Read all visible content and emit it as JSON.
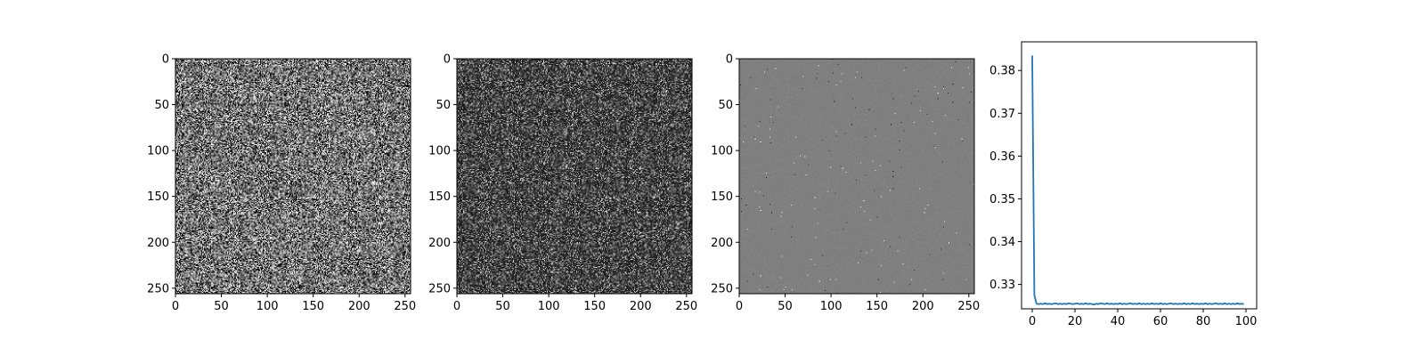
{
  "chart_data": [
    {
      "type": "heatmap",
      "colormap": "gray",
      "texture": "uniform-noise",
      "mean_level": 0.45,
      "contrast": 0.55,
      "xlim": [
        0,
        256
      ],
      "ylim": [
        256,
        0
      ],
      "x_ticks": [
        0,
        50,
        100,
        150,
        200,
        250
      ],
      "y_ticks": [
        0,
        50,
        100,
        150,
        200,
        250
      ],
      "x_tick_labels": [
        "0",
        "50",
        "100",
        "150",
        "200",
        "250"
      ],
      "y_tick_labels": [
        "0",
        "50",
        "100",
        "150",
        "200",
        "250"
      ]
    },
    {
      "type": "heatmap",
      "colormap": "gray",
      "texture": "sparse-noise",
      "mean_level": 0.1,
      "contrast": 0.35,
      "xlim": [
        0,
        256
      ],
      "ylim": [
        256,
        0
      ],
      "x_ticks": [
        0,
        50,
        100,
        150,
        200,
        250
      ],
      "y_ticks": [
        0,
        50,
        100,
        150,
        200,
        250
      ],
      "x_tick_labels": [
        "0",
        "50",
        "100",
        "150",
        "200",
        "250"
      ],
      "y_tick_labels": [
        "0",
        "50",
        "100",
        "150",
        "200",
        "250"
      ]
    },
    {
      "type": "heatmap",
      "colormap": "gray",
      "texture": "near-uniform",
      "mean_level": 0.5,
      "contrast": 0.04,
      "xlim": [
        0,
        256
      ],
      "ylim": [
        256,
        0
      ],
      "x_ticks": [
        0,
        50,
        100,
        150,
        200,
        250
      ],
      "y_ticks": [
        0,
        50,
        100,
        150,
        200,
        250
      ],
      "x_tick_labels": [
        "0",
        "50",
        "100",
        "150",
        "200",
        "250"
      ],
      "y_tick_labels": [
        "0",
        "50",
        "100",
        "150",
        "200",
        "250"
      ]
    },
    {
      "type": "line",
      "line_color": "#1f77b4",
      "xlim": [
        -5,
        105
      ],
      "ylim": [
        0.3243,
        0.3867
      ],
      "x_ticks": [
        0,
        20,
        40,
        60,
        80,
        100
      ],
      "y_ticks": [
        0.33,
        0.34,
        0.35,
        0.36,
        0.37,
        0.38
      ],
      "x_tick_labels": [
        "0",
        "20",
        "40",
        "60",
        "80",
        "100"
      ],
      "y_tick_labels": [
        "0.33",
        "0.34",
        "0.35",
        "0.36",
        "0.37",
        "0.38"
      ],
      "series": [
        {
          "x": [
            0,
            1,
            2,
            3,
            4,
            5,
            6,
            7,
            8,
            9,
            10,
            11,
            12,
            13,
            14,
            15,
            16,
            17,
            18,
            19,
            20,
            21,
            22,
            23,
            24,
            25,
            26,
            27,
            28,
            29,
            30,
            31,
            32,
            33,
            34,
            35,
            36,
            37,
            38,
            39,
            40,
            41,
            42,
            43,
            44,
            45,
            46,
            47,
            48,
            49,
            50,
            51,
            52,
            53,
            54,
            55,
            56,
            57,
            58,
            59,
            60,
            61,
            62,
            63,
            64,
            65,
            66,
            67,
            68,
            69,
            70,
            71,
            72,
            73,
            74,
            75,
            76,
            77,
            78,
            79,
            80,
            81,
            82,
            83,
            84,
            85,
            86,
            87,
            88,
            89,
            90,
            91,
            92,
            93,
            94,
            95,
            96,
            97,
            98,
            99
          ],
          "y": [
            0.3835,
            0.3275,
            0.3255,
            0.3254,
            0.3255,
            0.3254,
            0.3256,
            0.3254,
            0.3255,
            0.3254,
            0.3255,
            0.3256,
            0.3254,
            0.3255,
            0.3254,
            0.3255,
            0.3254,
            0.3256,
            0.3255,
            0.3254,
            0.3255,
            0.3256,
            0.3254,
            0.3255,
            0.3254,
            0.3256,
            0.3254,
            0.3255,
            0.3254,
            0.3253,
            0.3255,
            0.3254,
            0.3256,
            0.3255,
            0.3254,
            0.3256,
            0.3254,
            0.3255,
            0.3254,
            0.3255,
            0.3254,
            0.3256,
            0.3254,
            0.3255,
            0.3254,
            0.3255,
            0.3256,
            0.3254,
            0.3255,
            0.3254,
            0.3256,
            0.3254,
            0.3255,
            0.3254,
            0.3255,
            0.3254,
            0.3256,
            0.3254,
            0.3255,
            0.3254,
            0.3256,
            0.3254,
            0.3255,
            0.3254,
            0.3255,
            0.3256,
            0.3254,
            0.3255,
            0.3254,
            0.3255,
            0.3254,
            0.3256,
            0.3254,
            0.3255,
            0.3254,
            0.3256,
            0.3254,
            0.3255,
            0.3254,
            0.3255,
            0.3254,
            0.3256,
            0.3254,
            0.3255,
            0.3254,
            0.3255,
            0.3256,
            0.3254,
            0.3255,
            0.3254,
            0.3256,
            0.3254,
            0.3255,
            0.3254,
            0.3255,
            0.3254,
            0.3256,
            0.3254,
            0.3255,
            0.3254
          ]
        }
      ]
    }
  ]
}
